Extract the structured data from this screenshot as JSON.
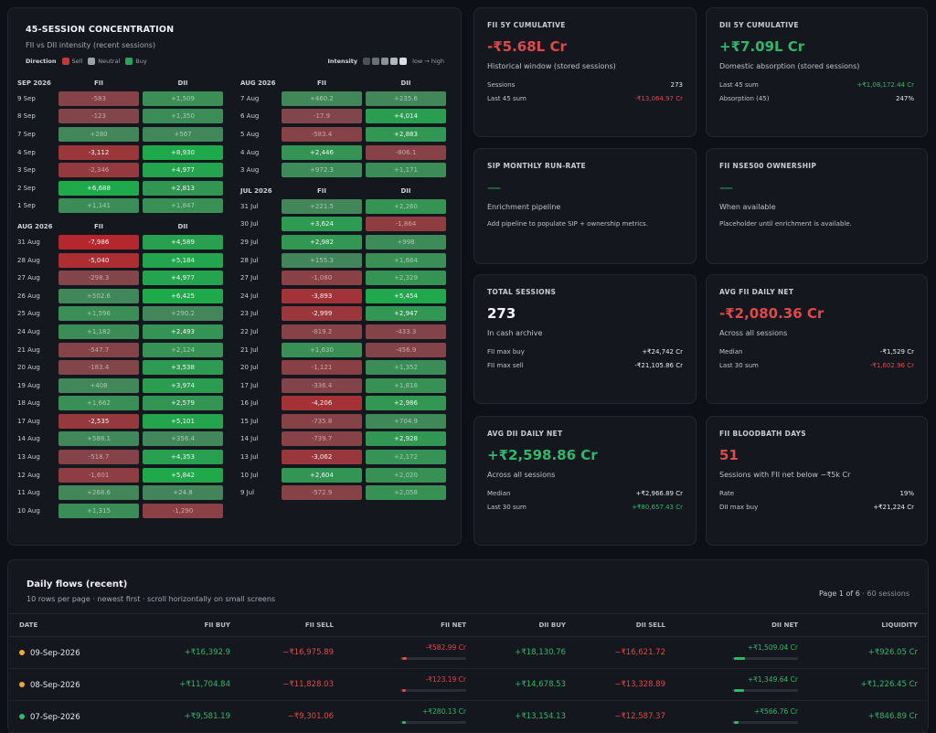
{
  "concentration": {
    "title": "45-SESSION CONCENTRATION",
    "subtitle": "FII vs DII intensity (recent sessions)",
    "direction_label": "Direction",
    "legend": [
      "Sell",
      "Neutral",
      "Buy"
    ],
    "intensity_label": "Intensity",
    "intensity_hint": "low → high",
    "col_fii": "FII",
    "col_dii": "DII",
    "columns": [
      [
        {
          "month": "SEP 2026",
          "rows": [
            {
              "d": "9 Sep",
              "fii": "-583",
              "dii": "+1,509"
            },
            {
              "d": "8 Sep",
              "fii": "-123",
              "dii": "+1,350"
            },
            {
              "d": "7 Sep",
              "fii": "+280",
              "dii": "+567"
            },
            {
              "d": "4 Sep",
              "fii": "-3,112",
              "dii": "+8,930"
            },
            {
              "d": "3 Sep",
              "fii": "-2,346",
              "dii": "+4,977"
            },
            {
              "d": "2 Sep",
              "fii": "+6,688",
              "dii": "+2,813"
            },
            {
              "d": "1 Sep",
              "fii": "+1,141",
              "dii": "+1,847"
            }
          ]
        },
        {
          "month": "AUG 2026",
          "rows": [
            {
              "d": "31 Aug",
              "fii": "-7,986",
              "dii": "+4,589"
            },
            {
              "d": "28 Aug",
              "fii": "-5,040",
              "dii": "+5,184"
            },
            {
              "d": "27 Aug",
              "fii": "-298.3",
              "dii": "+4,977"
            },
            {
              "d": "26 Aug",
              "fii": "+502.6",
              "dii": "+6,425"
            },
            {
              "d": "25 Aug",
              "fii": "+1,596",
              "dii": "+290.2"
            },
            {
              "d": "24 Aug",
              "fii": "+1,182",
              "dii": "+2,493"
            },
            {
              "d": "21 Aug",
              "fii": "-547.7",
              "dii": "+2,124"
            },
            {
              "d": "20 Aug",
              "fii": "-183.4",
              "dii": "+3,538"
            },
            {
              "d": "19 Aug",
              "fii": "+408",
              "dii": "+3,974"
            },
            {
              "d": "18 Aug",
              "fii": "+1,662",
              "dii": "+2,579"
            },
            {
              "d": "17 Aug",
              "fii": "-2,535",
              "dii": "+5,101"
            },
            {
              "d": "14 Aug",
              "fii": "+588.1",
              "dii": "+356.4"
            },
            {
              "d": "13 Aug",
              "fii": "-518.7",
              "dii": "+4,353"
            },
            {
              "d": "12 Aug",
              "fii": "-1,601",
              "dii": "+5,842"
            },
            {
              "d": "11 Aug",
              "fii": "+268.6",
              "dii": "+24.8"
            },
            {
              "d": "10 Aug",
              "fii": "+1,315",
              "dii": "-1,290"
            }
          ]
        }
      ],
      [
        {
          "month": "AUG 2026",
          "rows": [
            {
              "d": "7 Aug",
              "fii": "+460.2",
              "dii": "+235.6"
            },
            {
              "d": "6 Aug",
              "fii": "-17.9",
              "dii": "+4,014"
            },
            {
              "d": "5 Aug",
              "fii": "-583.4",
              "dii": "+2,883"
            },
            {
              "d": "4 Aug",
              "fii": "+2,446",
              "dii": "-806.1"
            },
            {
              "d": "3 Aug",
              "fii": "+972.3",
              "dii": "+1,171"
            }
          ]
        },
        {
          "month": "JUL 2026",
          "rows": [
            {
              "d": "31 Jul",
              "fii": "+221.5",
              "dii": "+2,260"
            },
            {
              "d": "30 Jul",
              "fii": "+3,624",
              "dii": "-1,864"
            },
            {
              "d": "29 Jul",
              "fii": "+2,982",
              "dii": "+998"
            },
            {
              "d": "28 Jul",
              "fii": "+155.3",
              "dii": "+1,664"
            },
            {
              "d": "27 Jul",
              "fii": "-1,080",
              "dii": "+2,329"
            },
            {
              "d": "24 Jul",
              "fii": "-3,893",
              "dii": "+5,454"
            },
            {
              "d": "23 Jul",
              "fii": "-2,999",
              "dii": "+2,947"
            },
            {
              "d": "22 Jul",
              "fii": "-819.2",
              "dii": "-433.3"
            },
            {
              "d": "21 Jul",
              "fii": "+1,630",
              "dii": "-456.9"
            },
            {
              "d": "20 Jul",
              "fii": "-1,121",
              "dii": "+1,352"
            },
            {
              "d": "17 Jul",
              "fii": "-336.4",
              "dii": "+1,818"
            },
            {
              "d": "16 Jul",
              "fii": "-4,206",
              "dii": "+2,986"
            },
            {
              "d": "15 Jul",
              "fii": "-735.8",
              "dii": "+704.9"
            },
            {
              "d": "14 Jul",
              "fii": "-739.7",
              "dii": "+2,928"
            },
            {
              "d": "13 Jul",
              "fii": "-3,062",
              "dii": "+2,172"
            },
            {
              "d": "10 Jul",
              "fii": "+2,604",
              "dii": "+2,020"
            },
            {
              "d": "9 Jul",
              "fii": "-572.9",
              "dii": "+2,058"
            }
          ]
        }
      ]
    ]
  },
  "cards": [
    {
      "key": "fii5y",
      "title": "FII 5Y CUMULATIVE",
      "value": "-₹5.68L Cr",
      "tone": "red",
      "sub": "Historical window (stored sessions)",
      "kv": [
        {
          "k": "Sessions",
          "v": "273",
          "tone": ""
        },
        {
          "k": "Last 45 sum",
          "v": "-₹13,064.97 Cr",
          "tone": "red"
        }
      ]
    },
    {
      "key": "dii5y",
      "title": "DII 5Y CUMULATIVE",
      "value": "+₹7.09L Cr",
      "tone": "green",
      "sub": "Domestic absorption (stored sessions)",
      "kv": [
        {
          "k": "Last 45 sum",
          "v": "+₹1,08,172.44 Cr",
          "tone": "green"
        },
        {
          "k": "Absorption (45)",
          "v": "247%",
          "tone": ""
        }
      ]
    },
    {
      "key": "sip",
      "title": "SIP MONTHLY RUN-RATE",
      "value": "—",
      "tone": "dash",
      "sub": "Enrichment pipeline",
      "note": "Add pipeline to populate SIP + ownership metrics.",
      "kv": []
    },
    {
      "key": "own",
      "title": "FII NSE500 OWNERSHIP",
      "value": "—",
      "tone": "dash",
      "sub": "When available",
      "note": "Placeholder until enrichment is available.",
      "kv": []
    },
    {
      "key": "total",
      "title": "TOTAL SESSIONS",
      "value": "273",
      "tone": "wh",
      "sub": "In cash archive",
      "kv": [
        {
          "k": "FII max buy",
          "v": "+₹24,742 Cr",
          "tone": ""
        },
        {
          "k": "FII max sell",
          "v": "-₹21,105.86 Cr",
          "tone": ""
        }
      ]
    },
    {
      "key": "avgfii",
      "title": "AVG FII DAILY NET",
      "value": "-₹2,080.36 Cr",
      "tone": "red",
      "sub": "Across all sessions",
      "kv": [
        {
          "k": "Median",
          "v": "-₹1,529 Cr",
          "tone": ""
        },
        {
          "k": "Last 30 sum",
          "v": "-₹1,602.96 Cr",
          "tone": "red"
        }
      ]
    },
    {
      "key": "avgdii",
      "title": "AVG DII DAILY NET",
      "value": "+₹2,598.86 Cr",
      "tone": "green",
      "sub": "Across all sessions",
      "kv": [
        {
          "k": "Median",
          "v": "+₹2,966.89 Cr",
          "tone": ""
        },
        {
          "k": "Last 30 sum",
          "v": "+₹80,657.43 Cr",
          "tone": "green"
        }
      ]
    },
    {
      "key": "blood",
      "title": "FII BLOODBATH DAYS",
      "value": "51",
      "tone": "red",
      "sub": "Sessions with FII net below −₹5k Cr",
      "kv": [
        {
          "k": "Rate",
          "v": "19%",
          "tone": ""
        },
        {
          "k": "DII max buy",
          "v": "+₹21,224 Cr",
          "tone": ""
        }
      ]
    }
  ],
  "flows": {
    "title": "Daily flows (recent)",
    "subtitle": "10 rows per page · newest first · scroll horizontally on small screens",
    "page_text": "Page 1 of 6",
    "sessions_text": "· 60 sessions",
    "headers": [
      "DATE",
      "FII BUY",
      "FII SELL",
      "FII NET",
      "DII BUY",
      "DII SELL",
      "DII NET",
      "LIQUIDITY"
    ],
    "rows": [
      {
        "date": "09-Sep-2026",
        "dot": "#f0a83a",
        "fii_buy": "+₹16,392.9",
        "fii_sell": "−₹16,975.89",
        "fii_net": "-₹582.99 Cr",
        "fii_net_frac": 0.07,
        "dii_buy": "+₹18,130.76",
        "dii_sell": "−₹16,621.72",
        "dii_net": "+₹1,509.04 Cr",
        "dii_net_frac": 0.17,
        "liquidity": "+₹926.05 Cr"
      },
      {
        "date": "08-Sep-2026",
        "dot": "#f0a83a",
        "fii_buy": "+₹11,704.84",
        "fii_sell": "−₹11,828.03",
        "fii_net": "-₹123.19 Cr",
        "fii_net_frac": 0.02,
        "dii_buy": "+₹14,678.53",
        "dii_sell": "−₹13,328.89",
        "dii_net": "+₹1,349.64 Cr",
        "dii_net_frac": 0.15,
        "liquidity": "+₹1,226.45 Cr"
      },
      {
        "date": "07-Sep-2026",
        "dot": "#2fb86b",
        "fii_buy": "+₹9,581.19",
        "fii_sell": "−₹9,301.06",
        "fii_net": "+₹280.13 Cr",
        "fii_net_frac": 0.04,
        "dii_buy": "+₹13,154.13",
        "dii_sell": "−₹12,587.37",
        "dii_net": "+₹566.76 Cr",
        "dii_net_frac": 0.07,
        "liquidity": "+₹846.89 Cr"
      }
    ]
  }
}
